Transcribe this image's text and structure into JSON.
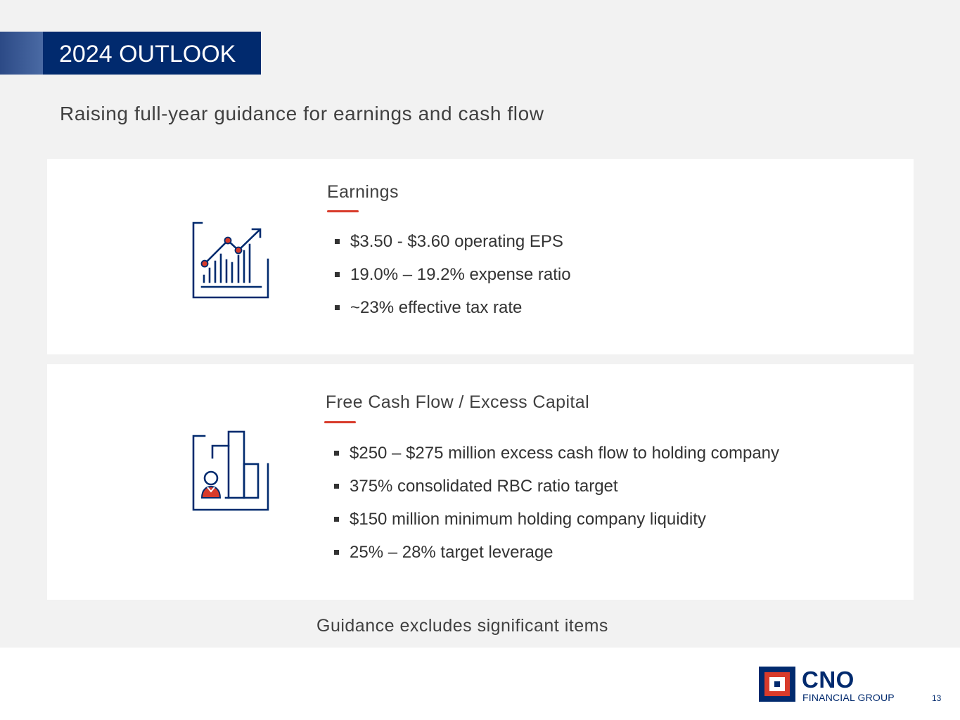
{
  "header": {
    "title": "2024 OUTLOOK"
  },
  "subtitle": "Raising full-year guidance for earnings and cash flow",
  "sections": [
    {
      "icon": "line-bar-chart-icon",
      "title": "Earnings",
      "bullets": [
        "$3.50 - $3.60 operating EPS",
        "19.0% – 19.2% expense ratio",
        "~23% effective tax rate"
      ]
    },
    {
      "icon": "person-bar-chart-icon",
      "title": "Free Cash Flow / Excess Capital",
      "bullets": [
        "$250 – $275 million excess cash flow to holding company",
        "375% consolidated RBC ratio target",
        "$150 million minimum holding company liquidity",
        "25% – 28% target leverage"
      ]
    }
  ],
  "footnote": "Guidance excludes significant items",
  "logo": {
    "name": "CNO",
    "subtitle": "FINANCIAL GROUP"
  },
  "page_number": "13",
  "colors": {
    "navy": "#012a6e",
    "accent_red": "#d83b2b",
    "background": "#f2f2f2"
  }
}
